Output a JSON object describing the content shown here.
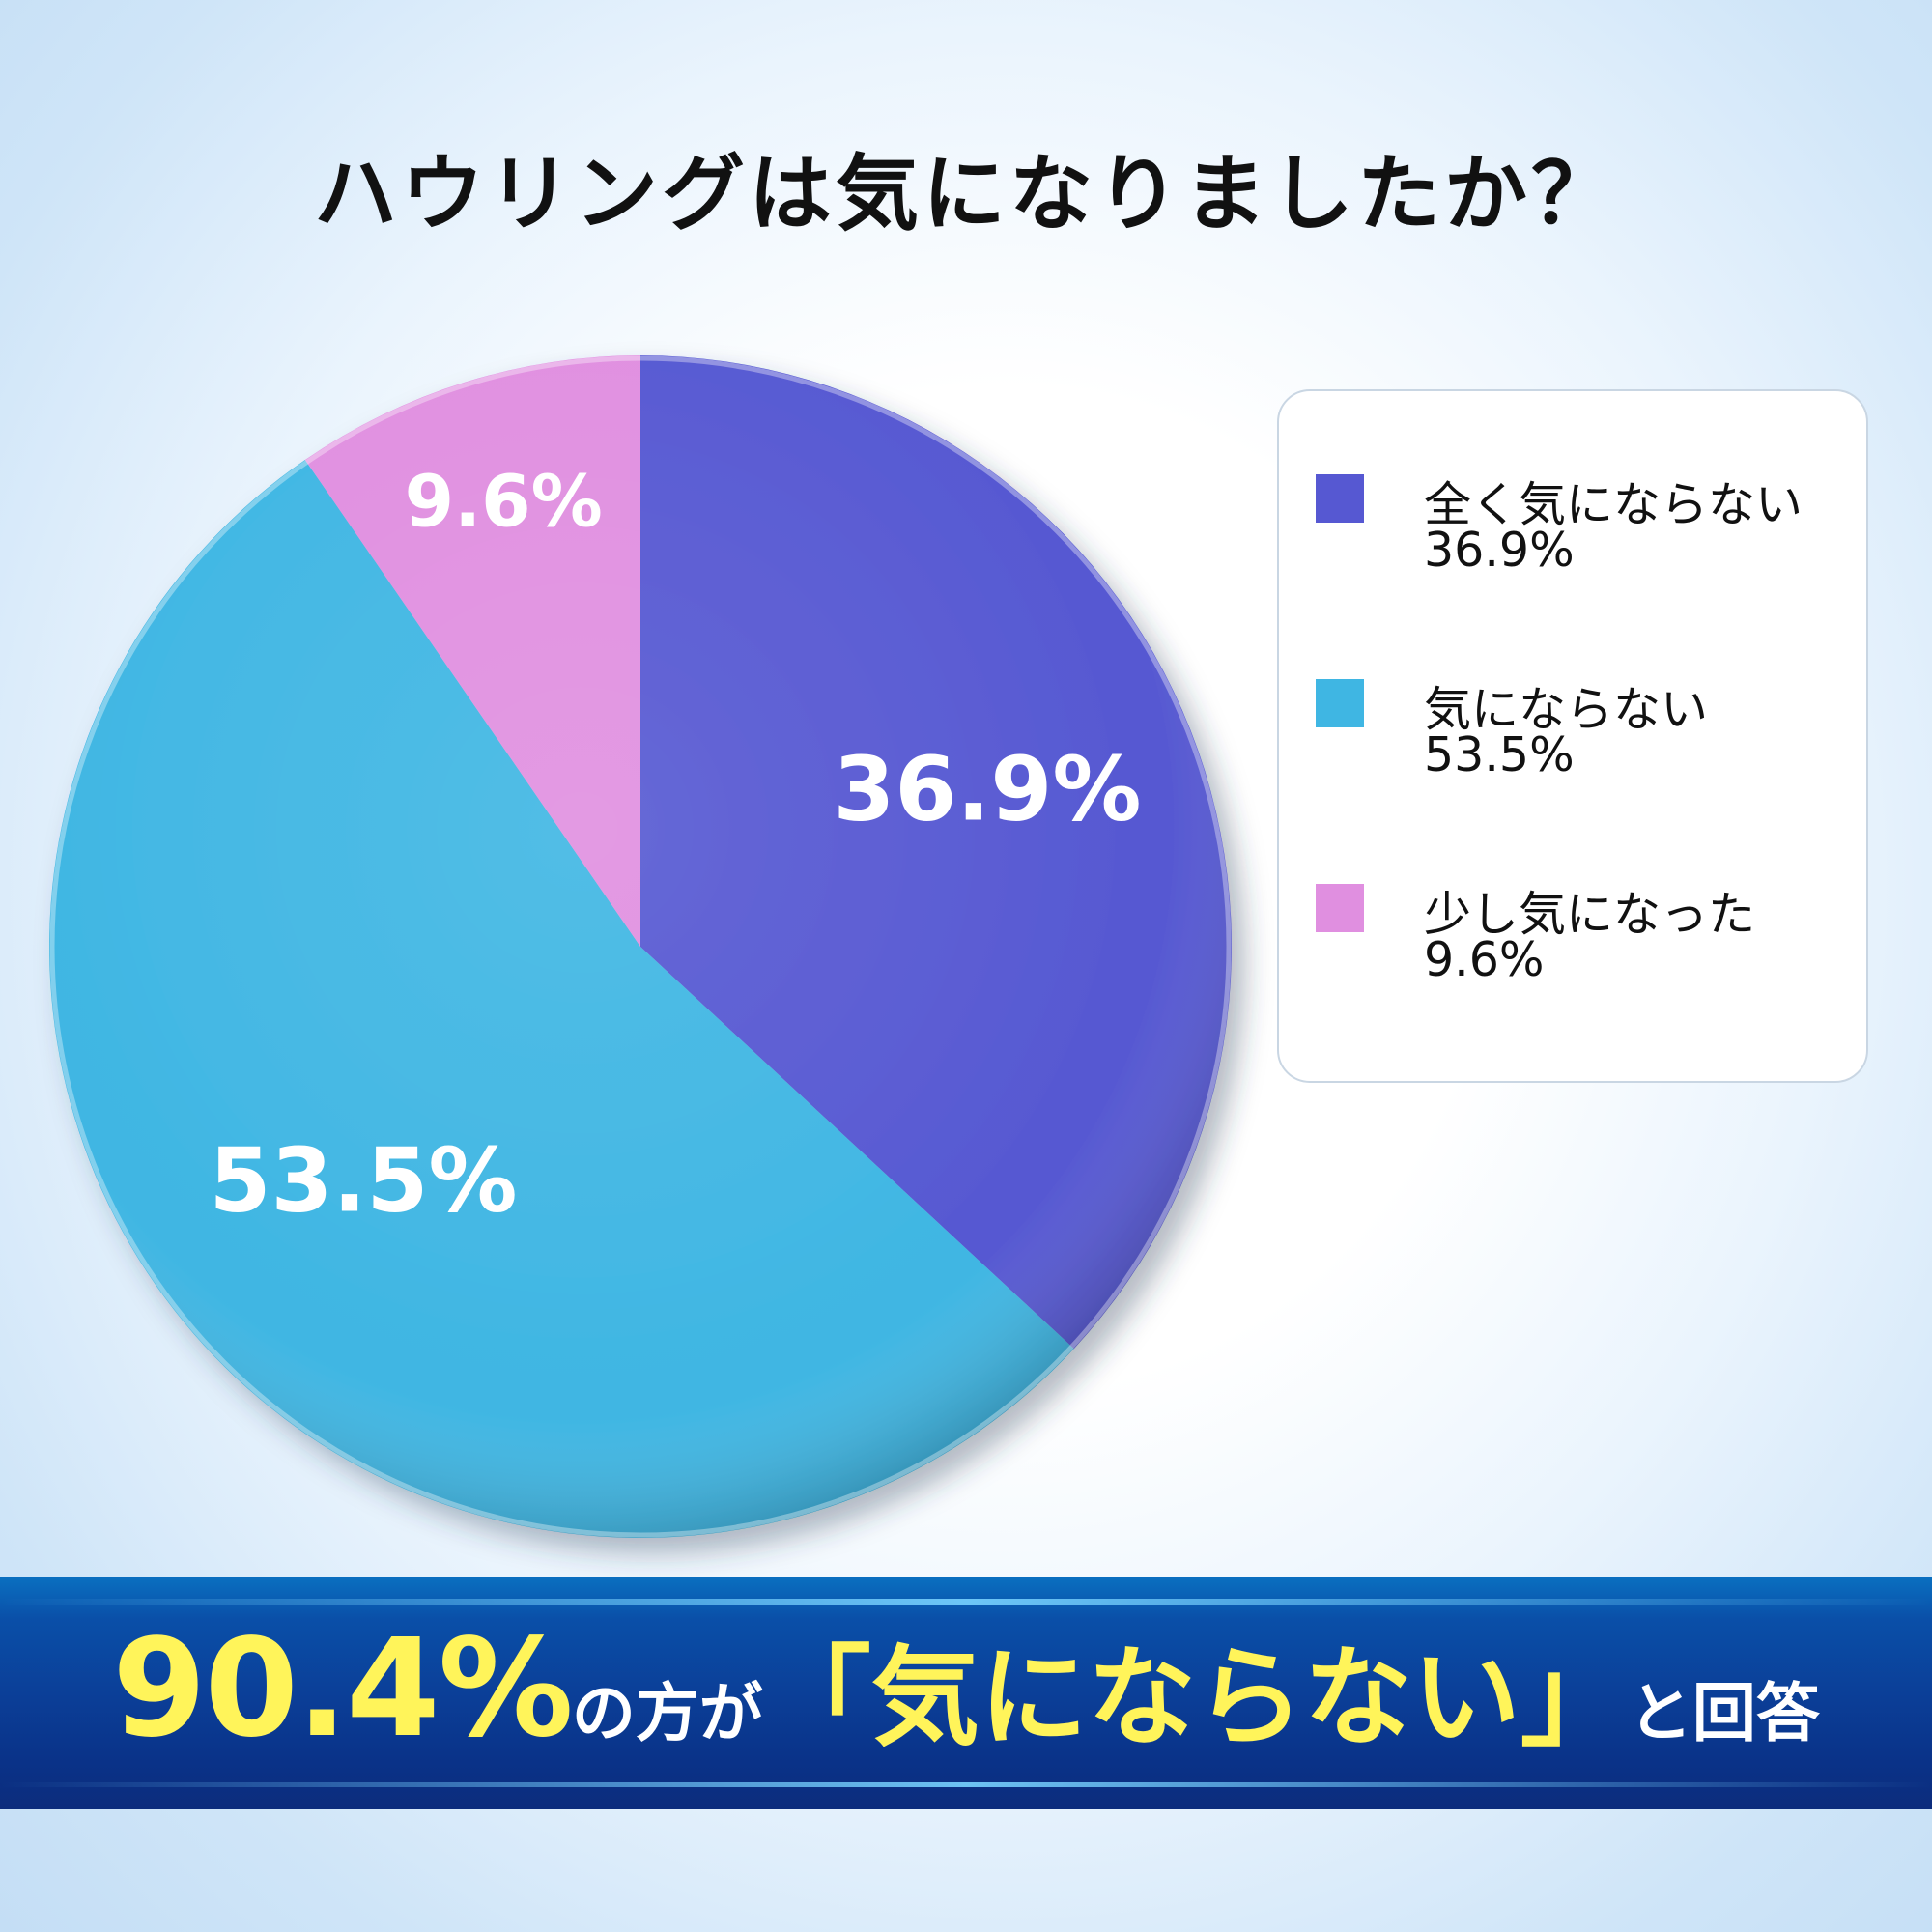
{
  "chart_data": {
    "type": "pie",
    "title": "ハウリングは気になりましたか？",
    "slices": [
      {
        "label": "全く気にならない",
        "value": 36.9,
        "value_label": "36.9%",
        "color": "#5658d2"
      },
      {
        "label": "気にならない",
        "value": 53.5,
        "value_label": "53.5%",
        "color": "#3fb6e3"
      },
      {
        "label": "少し気になった",
        "value": 9.6,
        "value_label": "9.6%",
        "color": "#e08fe0"
      }
    ],
    "legend": "right",
    "start_angle": "12 o'clock",
    "direction": "clockwise"
  },
  "legend_items": [
    {
      "name": "全く気にならない",
      "value": "36.9%"
    },
    {
      "name": "気にならない",
      "value": "53.5%"
    },
    {
      "name": "少し気になった",
      "value": "9.6%"
    }
  ],
  "banner": {
    "percent": "90.4%",
    "middle": "の方が",
    "quote": "「気にならない」",
    "end": "と回答"
  },
  "colors": {
    "banner_text": "#fff45a",
    "banner_bg": "#0b3f98"
  }
}
